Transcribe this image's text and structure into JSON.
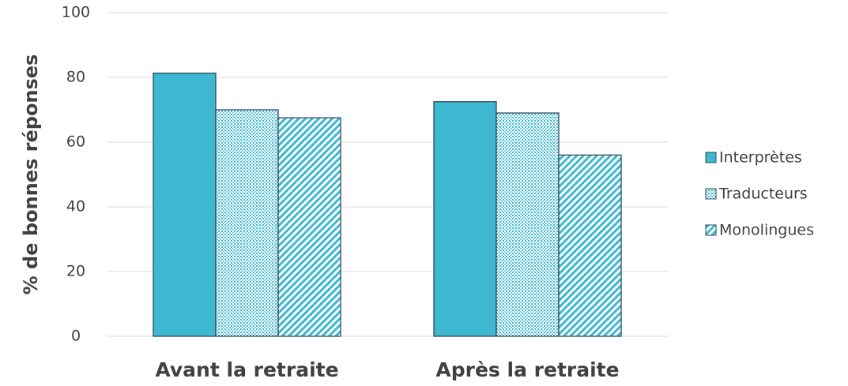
{
  "chart_data": {
    "type": "bar",
    "y_label": "% de bonnes réponses",
    "categories": [
      "Avant la retraite",
      "Après la retraite"
    ],
    "series": [
      {
        "name": "Interprètes",
        "color": "#3db8d0",
        "pattern": "solid",
        "values": [
          81.3,
          72.5
        ]
      },
      {
        "name": "Traducteurs",
        "color": "#3db8d0",
        "pattern": "dots",
        "values": [
          70,
          69
        ]
      },
      {
        "name": "Monolingues",
        "color": "#3db8d0",
        "pattern": "hatch",
        "values": [
          67.5,
          56
        ]
      }
    ],
    "ylim": [
      0,
      100
    ],
    "yticks": [
      0,
      20,
      40,
      60,
      80,
      100
    ],
    "grid": true,
    "legend": "right"
  }
}
